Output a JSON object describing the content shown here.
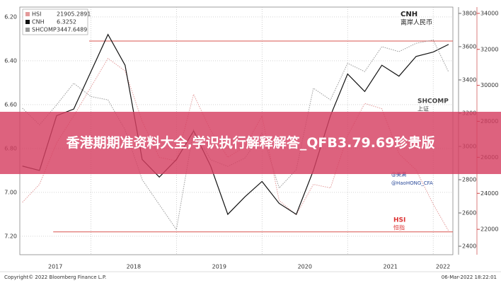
{
  "chart_data": {
    "type": "line",
    "legend": "top-left",
    "x": [
      2017.2,
      2017.4,
      2017.6,
      2017.8,
      2018.0,
      2018.2,
      2018.4,
      2018.6,
      2018.8,
      2019.0,
      2019.2,
      2019.4,
      2019.6,
      2019.8,
      2020.0,
      2020.2,
      2020.4,
      2020.6,
      2020.8,
      2021.0,
      2021.2,
      2021.4,
      2021.6,
      2021.8,
      2022.0,
      2022.18
    ],
    "xlim": [
      2017.17,
      2022.23
    ],
    "xticks": [
      2017,
      2018,
      2019,
      2020,
      2021,
      2022
    ],
    "ylim": [
      7.284,
      6.155
    ],
    "yticks": [
      {
        "value": 6.2,
        "label": "6.20"
      },
      {
        "value": 6.4,
        "label": "6.40"
      },
      {
        "value": 6.6,
        "label": "6.60"
      },
      {
        "value": 6.8,
        "label": "6.80"
      },
      {
        "value": 7.0,
        "label": "7.00"
      },
      {
        "value": 7.2,
        "label": "7.20"
      }
    ],
    "y2lim": [
      2349,
      3838
    ],
    "y2ticks": [
      2400,
      2600,
      2800,
      3000,
      3200,
      3400,
      3600,
      3800
    ],
    "y3lim": [
      20590,
      34350
    ],
    "y3ticks": [
      22000,
      24000,
      26000,
      28000,
      30000,
      32000,
      34000
    ],
    "series": [
      {
        "name": "HSI",
        "color": "#e39a9a",
        "axis": "y3",
        "values": [
          23500,
          24500,
          26800,
          28300,
          29900,
          31500,
          30800,
          28000,
          26000,
          25800,
          29500,
          27500,
          26000,
          26600,
          28300,
          23600,
          22800,
          24500,
          24300,
          27200,
          29000,
          28700,
          26200,
          25300,
          23400,
          21905.2891
        ]
      },
      {
        "name": "CNH",
        "color": "#111111",
        "axis": "y",
        "values": [
          6.88,
          6.9,
          6.65,
          6.62,
          6.45,
          6.28,
          6.42,
          6.85,
          6.93,
          6.85,
          6.72,
          6.88,
          7.1,
          7.02,
          6.95,
          7.05,
          7.1,
          6.9,
          6.65,
          6.46,
          6.54,
          6.42,
          6.47,
          6.38,
          6.36,
          6.3252
        ]
      },
      {
        "name": "SHCOMP",
        "color": "#9a9a9a",
        "axis": "y2",
        "values": [
          3230,
          3130,
          3250,
          3380,
          3300,
          3280,
          3100,
          2800,
          2650,
          2500,
          3100,
          2920,
          2880,
          2930,
          3080,
          2750,
          2860,
          3350,
          3280,
          3500,
          3450,
          3600,
          3570,
          3620,
          3640,
          3447.6489
        ]
      }
    ],
    "reference_lines": [
      {
        "y": 6.31,
        "x0": 2017.98,
        "color": "#d9534f"
      },
      {
        "y": 7.18,
        "x0": 2017.56,
        "color": "#d9534f"
      }
    ],
    "annotations": [
      "CNH",
      "离岸人民币",
      "SHCOMP",
      "上证",
      "@美满",
      "@HaoHONG_CFA",
      "HSI",
      "恒指"
    ],
    "footer_left": "Copyright© 2022 Bloomberg Finance L.P.",
    "footer_right": "06-Mar-2022 18:22:01",
    "banner": "香港期期准资料大全,学识执行解释解答_QFB3.79.69珍贵版"
  }
}
